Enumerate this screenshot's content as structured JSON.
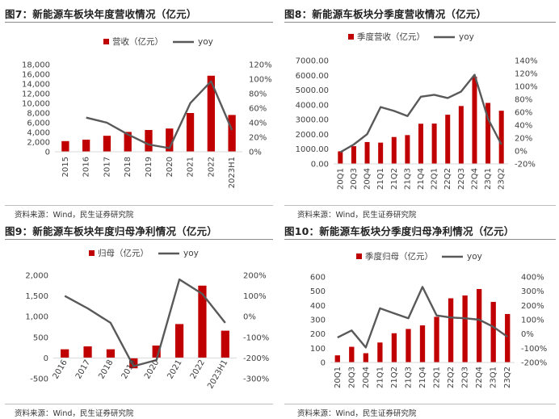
{
  "colors": {
    "bar": "#c00000",
    "line": "#595959",
    "axis": "#d9d9d9",
    "text": "#404040"
  },
  "source_text": "资料来源：Wind，民生证券研究院",
  "chart_data": [
    {
      "id": "c7",
      "type": "bar",
      "title": "图7：新能源车板块年度营收情况（亿元）",
      "categories": [
        "2015",
        "2016",
        "2017",
        "2018",
        "2019",
        "2020",
        "2021",
        "2022",
        "2023H1"
      ],
      "series": [
        {
          "name": "营收（亿元）",
          "type": "bar",
          "axis": "left",
          "values": [
            2200,
            2500,
            3300,
            4100,
            4500,
            4800,
            8000,
            15700,
            7600
          ]
        },
        {
          "name": "yoy",
          "type": "line",
          "axis": "right",
          "values": [
            null,
            47,
            40,
            24,
            10,
            5,
            67,
            97,
            30
          ]
        }
      ],
      "left_axis": {
        "min": 0,
        "max": 18000,
        "step": 2000,
        "ticks": [
          "0",
          "2,000",
          "4,000",
          "6,000",
          "8,000",
          "10,000",
          "12,000",
          "14,000",
          "16,000",
          "18,000"
        ]
      },
      "right_axis": {
        "min": 0,
        "max": 120,
        "step": 20,
        "ticks": [
          "0%",
          "20%",
          "40%",
          "60%",
          "80%",
          "100%",
          "120%"
        ]
      },
      "legend_position": "top",
      "xlabel_rotation": -90
    },
    {
      "id": "c8",
      "type": "bar",
      "title": "图8：新能源车板块分季度营收情况（亿元）",
      "categories": [
        "20Q1",
        "20Q3",
        "20Q4",
        "21Q1",
        "21Q2",
        "21Q3",
        "21Q4",
        "22Q1",
        "22Q2",
        "22Q3",
        "22Q4",
        "23Q1",
        "23Q2"
      ],
      "series": [
        {
          "name": "季度营收（亿元）",
          "type": "bar",
          "axis": "left",
          "values": [
            850,
            1200,
            1480,
            1440,
            1820,
            1950,
            2720,
            2730,
            3330,
            3920,
            5900,
            4130,
            3600
          ]
        },
        {
          "name": "yoy",
          "type": "line",
          "axis": "right",
          "values": [
            -2,
            10,
            26,
            68,
            62,
            54,
            84,
            87,
            82,
            92,
            118,
            50,
            10
          ]
        }
      ],
      "left_axis": {
        "min": 0,
        "max": 7000,
        "step": 1000,
        "ticks": [
          "0.00",
          "1000.00",
          "2000.00",
          "3000.00",
          "4000.00",
          "5000.00",
          "6000.00",
          "7000.00"
        ]
      },
      "right_axis": {
        "min": -20,
        "max": 140,
        "step": 20,
        "ticks": [
          "-20%",
          "0%",
          "20%",
          "40%",
          "60%",
          "80%",
          "100%",
          "120%",
          "140%"
        ]
      },
      "legend_position": "top",
      "xlabel_rotation": -90
    },
    {
      "id": "c9",
      "type": "bar",
      "title": "图9：新能源车板块年度归母净利情况（亿元）",
      "categories": [
        "2016",
        "2017",
        "2018",
        "2019",
        "2020",
        "2021",
        "2022",
        "2023H1"
      ],
      "series": [
        {
          "name": "归母（亿元）",
          "type": "bar",
          "axis": "left",
          "values": [
            210,
            280,
            210,
            -250,
            300,
            820,
            1750,
            660
          ]
        },
        {
          "name": "yoy",
          "type": "line",
          "axis": "right",
          "values": [
            100,
            40,
            -30,
            -240,
            -210,
            180,
            110,
            -30
          ]
        }
      ],
      "left_axis": {
        "min": -500,
        "max": 2000,
        "step": 500,
        "ticks": [
          "-500",
          "0",
          "500",
          "1,000",
          "1,500",
          "2,000"
        ]
      },
      "right_axis": {
        "min": -300,
        "max": 200,
        "step": 100,
        "ticks": [
          "-300%",
          "-200%",
          "-100%",
          "0%",
          "100%",
          "200%"
        ]
      },
      "legend_position": "top",
      "xlabel_rotation": -60
    },
    {
      "id": "c10",
      "type": "bar",
      "title": "图10：新能源车板块分季度归母净利情况（亿元）",
      "categories": [
        "20Q1",
        "20Q3",
        "20Q4",
        "21Q1",
        "21Q2",
        "21Q3",
        "21Q4",
        "22Q1",
        "22Q2",
        "22Q3",
        "22Q4",
        "23Q1",
        "23Q2"
      ],
      "series": [
        {
          "name": "季度归母（亿元）",
          "type": "bar",
          "axis": "left",
          "values": [
            50,
            110,
            65,
            140,
            205,
            235,
            260,
            320,
            450,
            470,
            515,
            425,
            340
          ]
        },
        {
          "name": "yoy",
          "type": "line",
          "axis": "right",
          "values": [
            -25,
            25,
            -95,
            180,
            145,
            110,
            330,
            130,
            115,
            110,
            100,
            50,
            -20
          ]
        }
      ],
      "left_axis": {
        "min": 0,
        "max": 600,
        "step": 100,
        "ticks": [
          "0",
          "100",
          "200",
          "300",
          "400",
          "500",
          "600"
        ]
      },
      "right_axis": {
        "min": -200,
        "max": 400,
        "step": 100,
        "ticks": [
          "-200%",
          "-100%",
          "0%",
          "100%",
          "200%",
          "300%",
          "400%"
        ]
      },
      "legend_position": "top",
      "xlabel_rotation": -90
    }
  ]
}
